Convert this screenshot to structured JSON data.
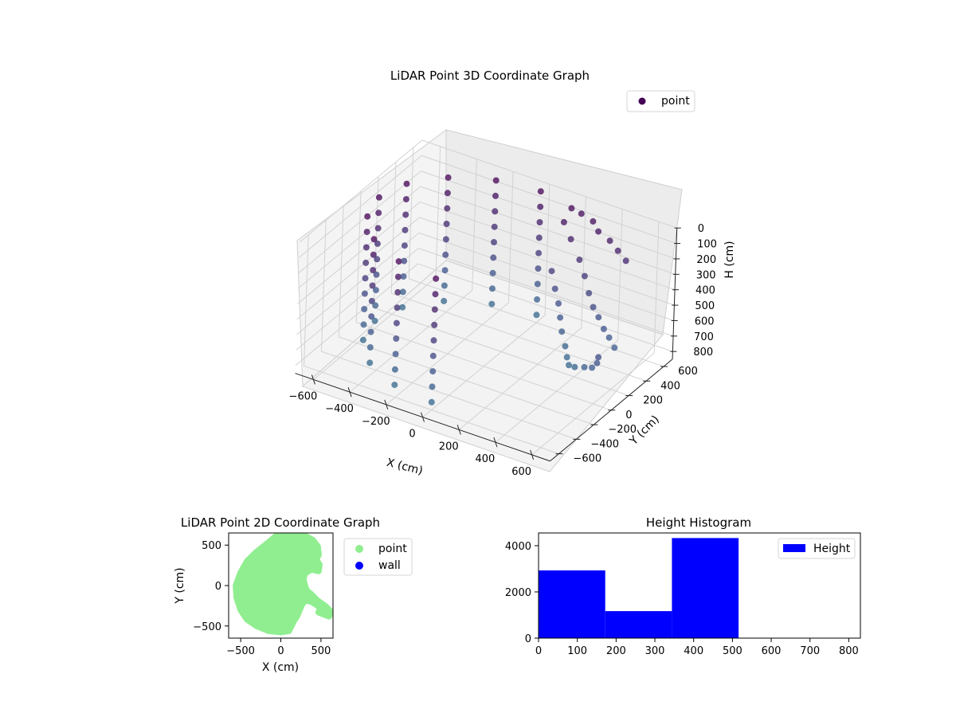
{
  "chart_data": [
    {
      "type": "scatter",
      "projection": "3d",
      "title": "LiDAR Point 3D Coordinate Graph",
      "xlabel": "X (cm)",
      "ylabel": "Y (cm)",
      "zlabel": "H (cm)",
      "xlim": [
        -700,
        700
      ],
      "ylim": [
        -700,
        700
      ],
      "zlim": [
        0,
        850
      ],
      "z_inverted": true,
      "xticks": [
        -600,
        -400,
        -200,
        0,
        200,
        400,
        600
      ],
      "yticks": [
        -600,
        -400,
        -200,
        0,
        200,
        400,
        600
      ],
      "zticks": [
        0,
        100,
        200,
        300,
        400,
        500,
        600,
        700,
        800
      ],
      "colormap": "viridis",
      "grid": true,
      "legend": {
        "position": "top-right",
        "entries": [
          {
            "label": "point",
            "color": "#440154"
          }
        ]
      },
      "series": [
        {
          "name": "point",
          "shape": "curved wall arc (approx.)",
          "arc": {
            "angles_deg": [
              90,
              112,
              135,
              158,
              180,
              202,
              225,
              248,
              270
            ],
            "radius": 600,
            "heights": [
              0,
              100,
              200,
              300,
              400,
              500,
              600,
              700,
              800
            ]
          }
        },
        {
          "name": "point",
          "shape": "scattered points (approx.)",
          "points": [
            [
              170,
              600,
              40
            ],
            [
              220,
              610,
              60
            ],
            [
              280,
              620,
              90
            ],
            [
              320,
              600,
              130
            ],
            [
              380,
              610,
              170
            ],
            [
              430,
              600,
              210
            ],
            [
              480,
              590,
              250
            ],
            [
              150,
              560,
              120
            ],
            [
              200,
              540,
              200
            ],
            [
              260,
              520,
              300
            ],
            [
              300,
              500,
              380
            ],
            [
              340,
              470,
              460
            ],
            [
              380,
              440,
              520
            ],
            [
              420,
              420,
              560
            ],
            [
              460,
              400,
              610
            ],
            [
              500,
              380,
              640
            ],
            [
              540,
              360,
              680
            ],
            [
              120,
              500,
              420
            ],
            [
              160,
              460,
              500
            ],
            [
              200,
              420,
              560
            ],
            [
              230,
              380,
              620
            ],
            [
              260,
              340,
              680
            ],
            [
              300,
              300,
              740
            ],
            [
              330,
              260,
              780
            ],
            [
              360,
              220,
              800
            ],
            [
              420,
              160,
              760
            ],
            [
              500,
              100,
              700
            ],
            [
              560,
              60,
              660
            ],
            [
              600,
              30,
              600
            ],
            [
              620,
              0,
              540
            ]
          ]
        }
      ]
    },
    {
      "type": "scatter",
      "title": "LiDAR Point 2D Coordinate Graph",
      "xlabel": "X (cm)",
      "ylabel": "Y (cm)",
      "xlim": [
        -650,
        650
      ],
      "ylim": [
        -650,
        650
      ],
      "xticks": [
        -500,
        0,
        500
      ],
      "yticks": [
        -500,
        0,
        500
      ],
      "grid": false,
      "legend": {
        "position": "outside-right",
        "entries": [
          {
            "label": "point",
            "color": "#90ee90"
          },
          {
            "label": "wall",
            "color": "#0000ff"
          }
        ]
      },
      "series": [
        {
          "name": "point",
          "color": "#90ee90",
          "outline": [
            [
              -560,
              0
            ],
            [
              -550,
              -150
            ],
            [
              -500,
              -300
            ],
            [
              -420,
              -420
            ],
            [
              -300,
              -500
            ],
            [
              -150,
              -560
            ],
            [
              0,
              -575
            ],
            [
              100,
              -560
            ],
            [
              130,
              -500
            ],
            [
              160,
              -440
            ],
            [
              200,
              -380
            ],
            [
              230,
              -310
            ],
            [
              260,
              -240
            ],
            [
              300,
              -180
            ],
            [
              380,
              -200
            ],
            [
              450,
              -240
            ],
            [
              500,
              -290
            ],
            [
              470,
              -330
            ],
            [
              520,
              -350
            ],
            [
              600,
              -380
            ],
            [
              620,
              -320
            ],
            [
              560,
              -260
            ],
            [
              450,
              -180
            ],
            [
              380,
              -110
            ],
            [
              320,
              -60
            ],
            [
              300,
              0
            ],
            [
              280,
              80
            ],
            [
              300,
              150
            ],
            [
              380,
              200
            ],
            [
              470,
              180
            ],
            [
              480,
              260
            ],
            [
              440,
              320
            ],
            [
              470,
              380
            ],
            [
              460,
              480
            ],
            [
              400,
              560
            ],
            [
              330,
              600
            ],
            [
              250,
              630
            ],
            [
              150,
              630
            ],
            [
              30,
              630
            ],
            [
              -50,
              620
            ],
            [
              -120,
              560
            ],
            [
              -220,
              480
            ],
            [
              -320,
              400
            ],
            [
              -420,
              300
            ],
            [
              -500,
              160
            ]
          ]
        },
        {
          "name": "wall",
          "color": "#0000ff",
          "points": []
        }
      ]
    },
    {
      "type": "bar",
      "subtype": "histogram",
      "title": "Height Histogram",
      "xlabel": "",
      "ylabel": "",
      "xlim": [
        0,
        830
      ],
      "ylim": [
        0,
        4550
      ],
      "xticks": [
        0,
        100,
        200,
        300,
        400,
        500,
        600,
        700,
        800
      ],
      "yticks": [
        0,
        2000,
        4000
      ],
      "grid": false,
      "legend": {
        "position": "top-right",
        "entries": [
          {
            "label": "Height",
            "color": "#0000ff"
          }
        ]
      },
      "bins": [
        {
          "x0": 0,
          "x1": 172,
          "count": 2930
        },
        {
          "x0": 172,
          "x1": 344,
          "count": 1170
        },
        {
          "x0": 344,
          "x1": 516,
          "count": 4330
        }
      ],
      "color": "#0000ff"
    }
  ]
}
